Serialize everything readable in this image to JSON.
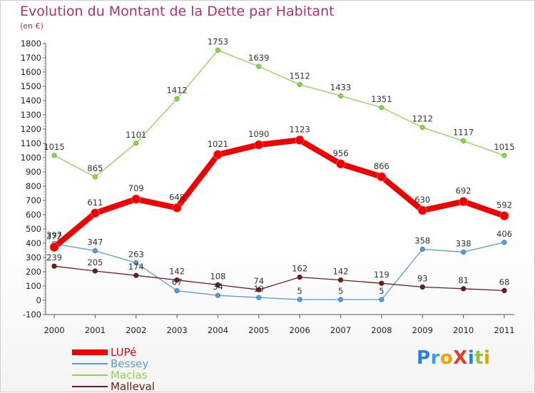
{
  "header": {
    "title": "Evolution du Montant de la Dette par Habitant",
    "unit": "(en €)"
  },
  "logo": {
    "text": "ProXiti",
    "colors": [
      "#2e7fd6",
      "#3aa0e0",
      "#f5a000",
      "#e03d2a",
      "#2e7fd6",
      "#8fc53a",
      "#e0a400"
    ]
  },
  "chart_data": {
    "type": "line",
    "title": "Evolution du Montant de la Dette par Habitant",
    "ylabel": "(en €)",
    "x": [
      "2000",
      "2001",
      "2002",
      "2003",
      "2004",
      "2005",
      "2006",
      "2007",
      "2008",
      "2009",
      "2010",
      "2011"
    ],
    "ylim": [
      -100,
      1800
    ],
    "yticks": [
      -100,
      0,
      100,
      200,
      300,
      400,
      500,
      600,
      700,
      800,
      900,
      1000,
      1100,
      1200,
      1300,
      1400,
      1500,
      1600,
      1700,
      1800
    ],
    "grid": false,
    "legend_position": "bottom-left",
    "series": [
      {
        "name": "LUPé",
        "color": "#ee0000",
        "values": [
          372,
          611,
          709,
          648,
          1021,
          1090,
          1123,
          956,
          866,
          630,
          692,
          592
        ]
      },
      {
        "name": "Bessey",
        "color": "#5b9bd5",
        "values": [
          397,
          347,
          263,
          67,
          34,
          19,
          5,
          5,
          5,
          358,
          338,
          406
        ]
      },
      {
        "name": "Maclas",
        "color": "#92d050",
        "values": [
          1015,
          865,
          1101,
          1412,
          1753,
          1639,
          1512,
          1433,
          1351,
          1212,
          1117,
          1015
        ]
      },
      {
        "name": "Malleval",
        "color": "#6b1e1e",
        "values": [
          239,
          205,
          174,
          142,
          108,
          74,
          162,
          142,
          119,
          93,
          81,
          68
        ]
      }
    ]
  }
}
